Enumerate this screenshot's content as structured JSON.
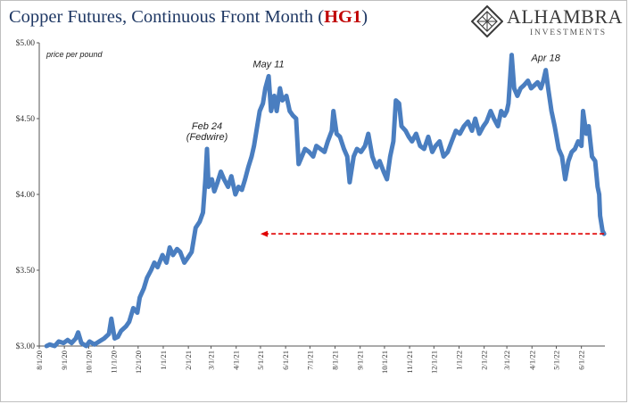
{
  "title_main": "Copper Futures, Continuous Front Month (",
  "title_ticker": "HG1",
  "title_close": ")",
  "logo": {
    "name": "ALHAMBRA",
    "sub": "INVESTMENTS",
    "icon": "diamond-lattice-icon"
  },
  "colors": {
    "series": "#4a7ec0",
    "title": "#1f3864",
    "ticker": "#c00000",
    "arrow": "#e00000"
  },
  "chart_data": {
    "type": "line",
    "title": "Copper Futures, Continuous Front Month (HG1)",
    "unit_label": "price per pound",
    "ylim": [
      3.0,
      5.0
    ],
    "y_ticks": [
      "$3.00",
      "$3.50",
      "$4.00",
      "$4.50",
      "$5.00"
    ],
    "x_tick_labels": [
      "8/1/20",
      "9/1/20",
      "10/1/20",
      "11/1/20",
      "12/1/20",
      "1/1/21",
      "2/1/21",
      "3/1/21",
      "4/1/21",
      "5/1/21",
      "6/1/21",
      "7/1/21",
      "8/1/21",
      "9/1/21",
      "10/1/21",
      "11/1/21",
      "12/1/21",
      "1/1/22",
      "2/1/22",
      "3/1/22",
      "4/1/22",
      "5/1/22",
      "6/1/22"
    ],
    "x_range": [
      "2020-08-01",
      "2022-06-30"
    ],
    "grid": false,
    "series": [
      {
        "points": [
          [
            "2020-08-10",
            3.0
          ],
          [
            "2020-08-14",
            3.01
          ],
          [
            "2020-08-20",
            3.0
          ],
          [
            "2020-08-25",
            3.03
          ],
          [
            "2020-08-31",
            3.02
          ],
          [
            "2020-09-05",
            3.04
          ],
          [
            "2020-09-10",
            3.02
          ],
          [
            "2020-09-15",
            3.05
          ],
          [
            "2020-09-18",
            3.09
          ],
          [
            "2020-09-22",
            3.02
          ],
          [
            "2020-09-28",
            3.0
          ],
          [
            "2020-10-02",
            3.03
          ],
          [
            "2020-10-08",
            3.01
          ],
          [
            "2020-10-14",
            3.03
          ],
          [
            "2020-10-20",
            3.05
          ],
          [
            "2020-10-26",
            3.08
          ],
          [
            "2020-10-29",
            3.18
          ],
          [
            "2020-11-02",
            3.05
          ],
          [
            "2020-11-06",
            3.06
          ],
          [
            "2020-11-10",
            3.1
          ],
          [
            "2020-11-16",
            3.13
          ],
          [
            "2020-11-20",
            3.16
          ],
          [
            "2020-11-25",
            3.25
          ],
          [
            "2020-11-30",
            3.22
          ],
          [
            "2020-12-03",
            3.32
          ],
          [
            "2020-12-08",
            3.38
          ],
          [
            "2020-12-12",
            3.45
          ],
          [
            "2020-12-17",
            3.5
          ],
          [
            "2020-12-21",
            3.55
          ],
          [
            "2020-12-25",
            3.52
          ],
          [
            "2020-12-31",
            3.6
          ],
          [
            "2021-01-05",
            3.55
          ],
          [
            "2021-01-09",
            3.65
          ],
          [
            "2021-01-13",
            3.6
          ],
          [
            "2021-01-18",
            3.64
          ],
          [
            "2021-01-22",
            3.62
          ],
          [
            "2021-01-27",
            3.55
          ],
          [
            "2021-01-31",
            3.58
          ],
          [
            "2021-02-05",
            3.62
          ],
          [
            "2021-02-10",
            3.78
          ],
          [
            "2021-02-15",
            3.82
          ],
          [
            "2021-02-19",
            3.88
          ],
          [
            "2021-02-22",
            4.1
          ],
          [
            "2021-02-24",
            4.3
          ],
          [
            "2021-02-26",
            4.05
          ],
          [
            "2021-03-02",
            4.1
          ],
          [
            "2021-03-05",
            4.02
          ],
          [
            "2021-03-09",
            4.08
          ],
          [
            "2021-03-13",
            4.15
          ],
          [
            "2021-03-17",
            4.1
          ],
          [
            "2021-03-22",
            4.05
          ],
          [
            "2021-03-26",
            4.12
          ],
          [
            "2021-03-31",
            4.0
          ],
          [
            "2021-04-04",
            4.05
          ],
          [
            "2021-04-08",
            4.03
          ],
          [
            "2021-04-12",
            4.1
          ],
          [
            "2021-04-16",
            4.18
          ],
          [
            "2021-04-20",
            4.25
          ],
          [
            "2021-04-23",
            4.32
          ],
          [
            "2021-04-27",
            4.45
          ],
          [
            "2021-04-30",
            4.55
          ],
          [
            "2021-05-04",
            4.6
          ],
          [
            "2021-05-07",
            4.7
          ],
          [
            "2021-05-11",
            4.78
          ],
          [
            "2021-05-14",
            4.55
          ],
          [
            "2021-05-18",
            4.65
          ],
          [
            "2021-05-21",
            4.55
          ],
          [
            "2021-05-25",
            4.7
          ],
          [
            "2021-05-28",
            4.62
          ],
          [
            "2021-06-02",
            4.65
          ],
          [
            "2021-06-06",
            4.55
          ],
          [
            "2021-06-10",
            4.52
          ],
          [
            "2021-06-14",
            4.5
          ],
          [
            "2021-06-17",
            4.2
          ],
          [
            "2021-06-21",
            4.25
          ],
          [
            "2021-06-25",
            4.3
          ],
          [
            "2021-06-30",
            4.28
          ],
          [
            "2021-07-05",
            4.25
          ],
          [
            "2021-07-09",
            4.32
          ],
          [
            "2021-07-14",
            4.3
          ],
          [
            "2021-07-19",
            4.28
          ],
          [
            "2021-07-23",
            4.35
          ],
          [
            "2021-07-28",
            4.42
          ],
          [
            "2021-07-30",
            4.55
          ],
          [
            "2021-08-03",
            4.4
          ],
          [
            "2021-08-07",
            4.38
          ],
          [
            "2021-08-12",
            4.3
          ],
          [
            "2021-08-16",
            4.25
          ],
          [
            "2021-08-19",
            4.08
          ],
          [
            "2021-08-24",
            4.25
          ],
          [
            "2021-08-28",
            4.3
          ],
          [
            "2021-09-02",
            4.28
          ],
          [
            "2021-09-07",
            4.32
          ],
          [
            "2021-09-11",
            4.4
          ],
          [
            "2021-09-16",
            4.25
          ],
          [
            "2021-09-21",
            4.18
          ],
          [
            "2021-09-25",
            4.22
          ],
          [
            "2021-09-30",
            4.15
          ],
          [
            "2021-10-04",
            4.1
          ],
          [
            "2021-10-08",
            4.25
          ],
          [
            "2021-10-12",
            4.35
          ],
          [
            "2021-10-15",
            4.62
          ],
          [
            "2021-10-19",
            4.6
          ],
          [
            "2021-10-22",
            4.45
          ],
          [
            "2021-10-27",
            4.42
          ],
          [
            "2021-10-31",
            4.38
          ],
          [
            "2021-11-04",
            4.35
          ],
          [
            "2021-11-09",
            4.4
          ],
          [
            "2021-11-14",
            4.32
          ],
          [
            "2021-11-19",
            4.3
          ],
          [
            "2021-11-24",
            4.38
          ],
          [
            "2021-11-29",
            4.28
          ],
          [
            "2021-12-03",
            4.32
          ],
          [
            "2021-12-08",
            4.35
          ],
          [
            "2021-12-13",
            4.25
          ],
          [
            "2021-12-18",
            4.28
          ],
          [
            "2021-12-23",
            4.35
          ],
          [
            "2021-12-28",
            4.42
          ],
          [
            "2022-01-02",
            4.4
          ],
          [
            "2022-01-07",
            4.45
          ],
          [
            "2022-01-12",
            4.48
          ],
          [
            "2022-01-17",
            4.42
          ],
          [
            "2022-01-21",
            4.5
          ],
          [
            "2022-01-26",
            4.4
          ],
          [
            "2022-01-31",
            4.45
          ],
          [
            "2022-02-04",
            4.48
          ],
          [
            "2022-02-09",
            4.55
          ],
          [
            "2022-02-13",
            4.5
          ],
          [
            "2022-02-18",
            4.45
          ],
          [
            "2022-02-22",
            4.55
          ],
          [
            "2022-02-26",
            4.52
          ],
          [
            "2022-03-01",
            4.55
          ],
          [
            "2022-03-03",
            4.6
          ],
          [
            "2022-03-07",
            4.92
          ],
          [
            "2022-03-10",
            4.7
          ],
          [
            "2022-03-14",
            4.65
          ],
          [
            "2022-03-18",
            4.7
          ],
          [
            "2022-03-22",
            4.72
          ],
          [
            "2022-03-27",
            4.75
          ],
          [
            "2022-03-31",
            4.7
          ],
          [
            "2022-04-04",
            4.72
          ],
          [
            "2022-04-08",
            4.74
          ],
          [
            "2022-04-12",
            4.7
          ],
          [
            "2022-04-15",
            4.75
          ],
          [
            "2022-04-18",
            4.82
          ],
          [
            "2022-04-21",
            4.7
          ],
          [
            "2022-04-25",
            4.55
          ],
          [
            "2022-04-29",
            4.45
          ],
          [
            "2022-05-04",
            4.3
          ],
          [
            "2022-05-08",
            4.25
          ],
          [
            "2022-05-12",
            4.1
          ],
          [
            "2022-05-16",
            4.22
          ],
          [
            "2022-05-20",
            4.28
          ],
          [
            "2022-05-24",
            4.3
          ],
          [
            "2022-05-28",
            4.35
          ],
          [
            "2022-06-01",
            4.32
          ],
          [
            "2022-06-03",
            4.55
          ],
          [
            "2022-06-07",
            4.4
          ],
          [
            "2022-06-10",
            4.45
          ],
          [
            "2022-06-14",
            4.25
          ],
          [
            "2022-06-18",
            4.22
          ],
          [
            "2022-06-21",
            4.05
          ],
          [
            "2022-06-23",
            4.0
          ],
          [
            "2022-06-24",
            3.86
          ],
          [
            "2022-06-27",
            3.76
          ],
          [
            "2022-06-29",
            3.74
          ]
        ]
      }
    ],
    "annotations": [
      {
        "date": "2021-02-24",
        "lines": [
          "Feb 24",
          "(Fedwire)"
        ]
      },
      {
        "date": "2021-05-11",
        "lines": [
          "May 11"
        ]
      },
      {
        "date": "2022-04-18",
        "lines": [
          "Apr 18"
        ]
      }
    ],
    "reference_arrow": {
      "value": 3.74,
      "from_date": "2022-06-29",
      "to_date": "2021-05-01",
      "style": "dashed"
    }
  }
}
